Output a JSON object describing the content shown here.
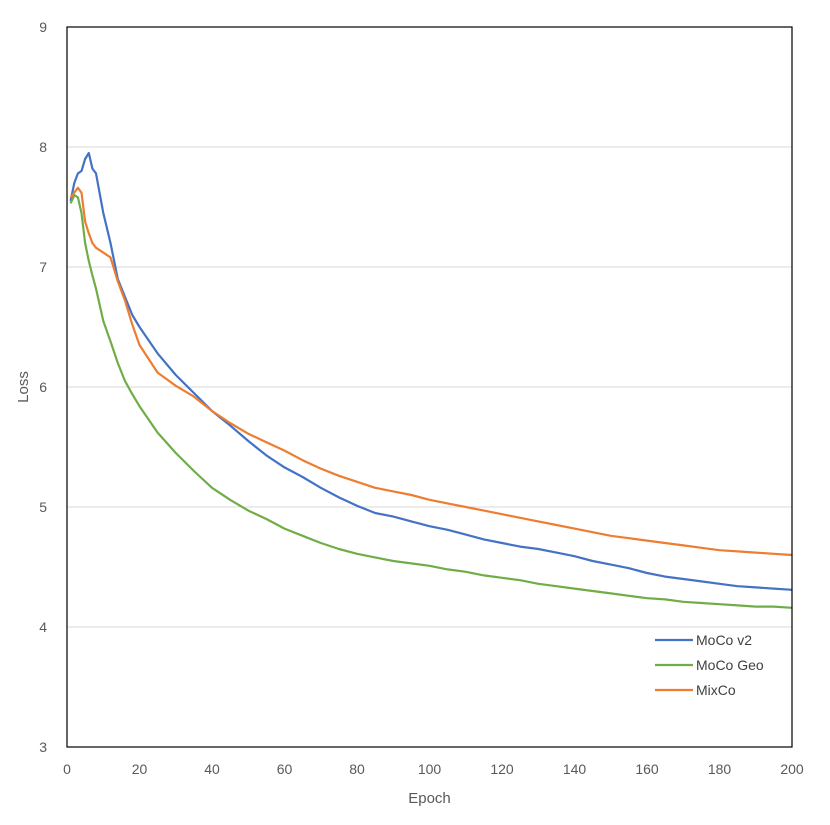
{
  "chart_data": {
    "type": "line",
    "xlabel": "Epoch",
    "ylabel": "Loss",
    "xlim": [
      0,
      200
    ],
    "ylim": [
      3,
      9
    ],
    "x_ticks": [
      0,
      20,
      40,
      60,
      80,
      100,
      120,
      140,
      160,
      180,
      200
    ],
    "y_ticks": [
      3,
      4,
      5,
      6,
      7,
      8,
      9
    ],
    "grid": "horizontal",
    "legend_position": "bottom-right",
    "x": [
      1,
      2,
      3,
      4,
      5,
      6,
      7,
      8,
      10,
      12,
      14,
      16,
      18,
      20,
      25,
      30,
      35,
      40,
      45,
      50,
      55,
      60,
      65,
      70,
      75,
      80,
      85,
      90,
      95,
      100,
      105,
      110,
      115,
      120,
      125,
      130,
      135,
      140,
      145,
      150,
      155,
      160,
      165,
      170,
      175,
      180,
      185,
      190,
      195,
      200
    ],
    "series": [
      {
        "name": "MoCo v2",
        "color": "#4472C4",
        "values": [
          7.55,
          7.7,
          7.78,
          7.8,
          7.9,
          7.95,
          7.82,
          7.78,
          7.45,
          7.2,
          6.9,
          6.75,
          6.6,
          6.5,
          6.28,
          6.1,
          5.95,
          5.8,
          5.68,
          5.55,
          5.43,
          5.33,
          5.25,
          5.16,
          5.08,
          5.01,
          4.95,
          4.92,
          4.88,
          4.84,
          4.81,
          4.77,
          4.73,
          4.7,
          4.67,
          4.65,
          4.62,
          4.59,
          4.55,
          4.52,
          4.49,
          4.45,
          4.42,
          4.4,
          4.38,
          4.36,
          4.34,
          4.33,
          4.32,
          4.31
        ]
      },
      {
        "name": "MoCo Geo",
        "color": "#70AD47",
        "values": [
          7.53,
          7.6,
          7.58,
          7.45,
          7.2,
          7.05,
          6.93,
          6.82,
          6.55,
          6.38,
          6.2,
          6.05,
          5.94,
          5.84,
          5.62,
          5.45,
          5.3,
          5.16,
          5.06,
          4.97,
          4.9,
          4.82,
          4.76,
          4.7,
          4.65,
          4.61,
          4.58,
          4.55,
          4.53,
          4.51,
          4.48,
          4.46,
          4.43,
          4.41,
          4.39,
          4.36,
          4.34,
          4.32,
          4.3,
          4.28,
          4.26,
          4.24,
          4.23,
          4.21,
          4.2,
          4.19,
          4.18,
          4.17,
          4.17,
          4.16
        ]
      },
      {
        "name": "MixCo",
        "color": "#ED7D31",
        "values": [
          7.58,
          7.62,
          7.66,
          7.62,
          7.38,
          7.28,
          7.2,
          7.16,
          7.12,
          7.08,
          6.88,
          6.72,
          6.52,
          6.35,
          6.12,
          6.01,
          5.92,
          5.8,
          5.7,
          5.61,
          5.54,
          5.47,
          5.39,
          5.32,
          5.26,
          5.21,
          5.16,
          5.13,
          5.1,
          5.06,
          5.03,
          5.0,
          4.97,
          4.94,
          4.91,
          4.88,
          4.85,
          4.82,
          4.79,
          4.76,
          4.74,
          4.72,
          4.7,
          4.68,
          4.66,
          4.64,
          4.63,
          4.62,
          4.61,
          4.6
        ]
      }
    ]
  }
}
